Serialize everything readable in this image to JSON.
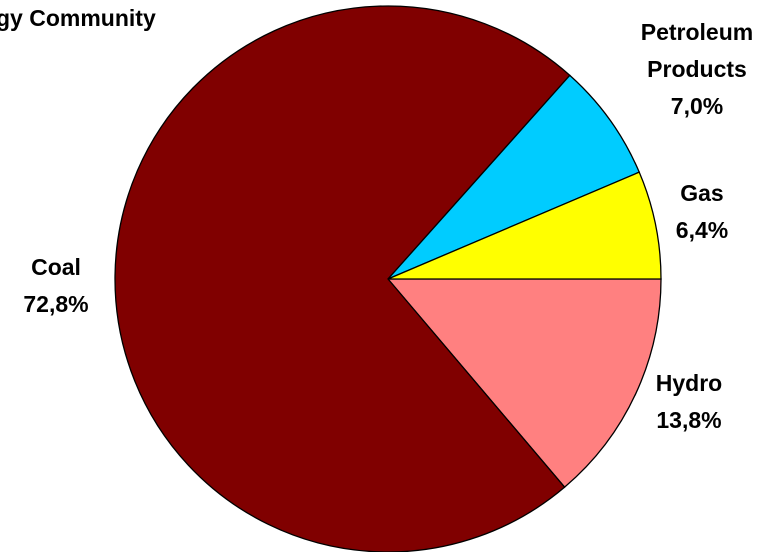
{
  "chart_data": {
    "type": "pie",
    "title": "gy Community",
    "start_angle_deg": -90,
    "direction": "counterclockwise",
    "slices": [
      {
        "name": "Hydro",
        "value": 13.8,
        "display": "13,8%",
        "color": "#ff8080"
      },
      {
        "name": "Coal",
        "value": 72.8,
        "display": "72,8%",
        "color": "#800000"
      },
      {
        "name": "Petroleum Products",
        "value": 7.0,
        "display": "7,0%",
        "color": "#00ccff"
      },
      {
        "name": "Gas",
        "value": 6.4,
        "display": "6,4%",
        "color": "#ffff00"
      }
    ],
    "labels": {
      "title": "gy Community",
      "hydro_name": "Hydro",
      "hydro_pct": "13,8%",
      "coal_name": "Coal",
      "coal_pct": "72,8%",
      "petroleum_line1": "Petroleum",
      "petroleum_line2": "Products",
      "petroleum_pct": "7,0%",
      "gas_name": "Gas",
      "gas_pct": "6,4%"
    }
  }
}
